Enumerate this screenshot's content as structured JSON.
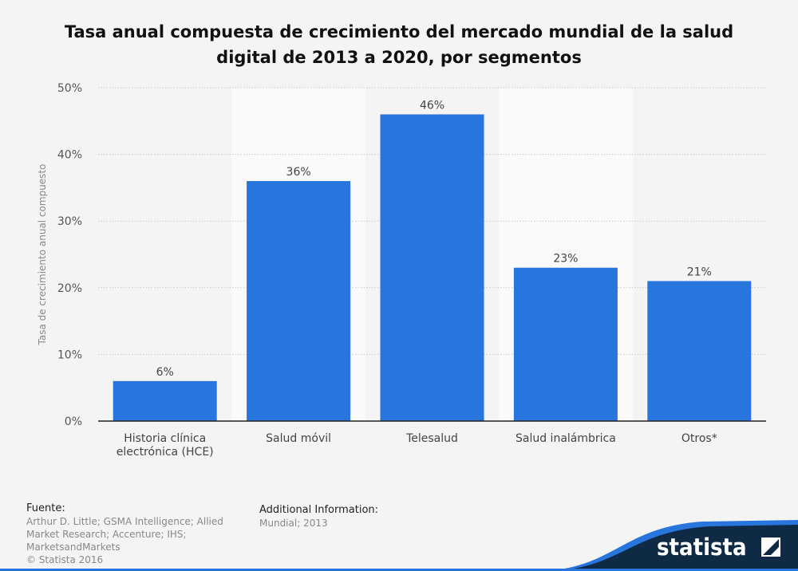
{
  "chart_data": {
    "type": "bar",
    "title": "Tasa anual compuesta de crecimiento del mercado mundial de la salud digital de 2013 a 2020, por segmentos",
    "ylabel": "Tasa de crecimiento anual compuesto",
    "xlabel": "",
    "categories": [
      "Historia clínica electrónica (HCE)",
      "Salud móvil",
      "Telesalud",
      "Salud inalámbrica",
      "Otros*"
    ],
    "values": [
      6,
      36,
      46,
      23,
      21
    ],
    "data_labels": [
      "6%",
      "36%",
      "46%",
      "23%",
      "21%"
    ],
    "ylim": [
      0,
      50
    ],
    "yticks": [
      "0%",
      "10%",
      "20%",
      "30%",
      "40%",
      "50%"
    ],
    "grid": true,
    "bar_color": "#2876dd"
  },
  "footer": {
    "source_label": "Fuente:",
    "source_lines": [
      "Arthur D. Little; GSMA Intelligence; Allied",
      "Market Research; Accenture; IHS;",
      "MarketsandMarkets",
      "© Statista 2016"
    ],
    "info_label": "Additional Information:",
    "info_text": "Mundial; 2013"
  },
  "brand": {
    "logo_text": "statista"
  }
}
